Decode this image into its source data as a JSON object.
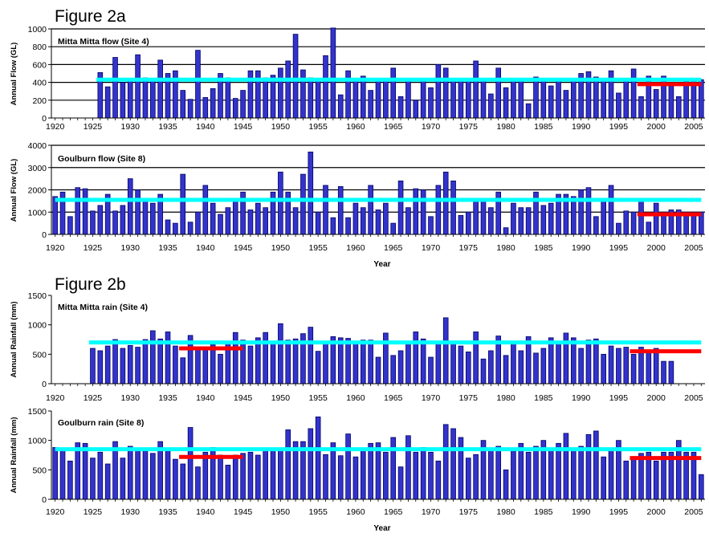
{
  "figures": [
    "Figure 2a",
    "Figure 2b"
  ],
  "chart_data": [
    {
      "type": "bar",
      "title": "Mitta Mitta flow (Site 4)",
      "ylabel": "Annual Flow (GL)",
      "xlabel": "",
      "ylim": [
        0,
        1000
      ],
      "yticks": [
        0,
        200,
        400,
        600,
        800,
        1000
      ],
      "xlim": [
        1920,
        2006
      ],
      "xticks": [
        1920,
        1925,
        1930,
        1935,
        1940,
        1945,
        1950,
        1955,
        1960,
        1965,
        1970,
        1975,
        1980,
        1985,
        1990,
        1995,
        2000,
        2005
      ],
      "grid": true,
      "bar_color": "#3333cc",
      "start_year": 1926,
      "values": [
        510,
        350,
        680,
        400,
        420,
        710,
        450,
        420,
        650,
        500,
        530,
        310,
        210,
        760,
        230,
        330,
        500,
        450,
        220,
        310,
        530,
        530,
        450,
        480,
        560,
        640,
        940,
        540,
        450,
        420,
        700,
        1010,
        260,
        530,
        420,
        470,
        310,
        430,
        440,
        560,
        240,
        420,
        200,
        430,
        340,
        600,
        560,
        430,
        420,
        420,
        640,
        420,
        270,
        560,
        340,
        430,
        420,
        160,
        460,
        420,
        360,
        430,
        310,
        430,
        500,
        520,
        460,
        420,
        530,
        280,
        420,
        550,
        240,
        470,
        320,
        470,
        360,
        240,
        410,
        430,
        430
      ],
      "mean_line": {
        "color": "#00ffff",
        "from": 1925.5,
        "to": 2006,
        "value": 430
      },
      "recent_line": {
        "color": "#ff0000",
        "from": 1997.5,
        "to": 2006,
        "value": 380
      }
    },
    {
      "type": "bar",
      "title": "Goulburn flow (Site 8)",
      "ylabel": "Annual Flow (GL)",
      "xlabel": "Year",
      "ylim": [
        0,
        4000
      ],
      "yticks": [
        0,
        1000,
        2000,
        3000,
        4000
      ],
      "xlim": [
        1920,
        2006
      ],
      "xticks": [
        1920,
        1925,
        1930,
        1935,
        1940,
        1945,
        1950,
        1955,
        1960,
        1965,
        1970,
        1975,
        1980,
        1985,
        1990,
        1995,
        2000,
        2005
      ],
      "grid": true,
      "bar_color": "#3333cc",
      "start_year": 1920,
      "values": [
        1700,
        1900,
        800,
        2100,
        2050,
        1050,
        1300,
        1800,
        1050,
        1300,
        2500,
        2000,
        1500,
        1400,
        1800,
        650,
        500,
        2700,
        550,
        1000,
        2200,
        1400,
        900,
        1200,
        1600,
        1900,
        1100,
        1400,
        1200,
        1900,
        2800,
        1900,
        1200,
        2700,
        3700,
        1000,
        2200,
        750,
        2150,
        750,
        1400,
        1200,
        2200,
        1100,
        1400,
        500,
        2400,
        1200,
        2050,
        2000,
        800,
        2200,
        2800,
        2400,
        850,
        1000,
        1500,
        1500,
        1200,
        1900,
        300,
        1400,
        1200,
        1200,
        1900,
        1300,
        1400,
        1800,
        1800,
        1700,
        2000,
        2100,
        800,
        1600,
        2200,
        500,
        1050,
        1000,
        1500,
        550,
        1400,
        1000,
        1100,
        1100,
        1000,
        1000,
        1000
      ],
      "mean_line": {
        "color": "#00ffff",
        "from": 1920,
        "to": 2006,
        "value": 1550
      },
      "recent_line": {
        "color": "#ff0000",
        "from": 1997.5,
        "to": 2006,
        "value": 900
      }
    },
    {
      "type": "bar",
      "title": "Mitta Mitta rain (Site 4)",
      "ylabel": "Annual Rainfall (mm)",
      "xlabel": "",
      "ylim": [
        0,
        1500
      ],
      "yticks": [
        0,
        500,
        1000,
        1500
      ],
      "xlim": [
        1920,
        2006
      ],
      "xticks": [
        1920,
        1925,
        1930,
        1935,
        1940,
        1945,
        1950,
        1955,
        1960,
        1965,
        1970,
        1975,
        1980,
        1985,
        1990,
        1995,
        2000,
        2005
      ],
      "grid": false,
      "bar_color": "#3333cc",
      "start_year": 1925,
      "values": [
        600,
        560,
        640,
        750,
        600,
        650,
        620,
        750,
        900,
        760,
        880,
        640,
        440,
        820,
        580,
        620,
        660,
        500,
        700,
        870,
        740,
        640,
        780,
        870,
        700,
        1020,
        740,
        760,
        850,
        960,
        550,
        700,
        800,
        780,
        770,
        720,
        740,
        740,
        450,
        860,
        480,
        560,
        700,
        880,
        760,
        450,
        720,
        1120,
        720,
        640,
        540,
        880,
        420,
        560,
        810,
        480,
        720,
        560,
        800,
        520,
        600,
        780,
        700,
        860,
        780,
        600,
        740,
        760,
        500,
        640,
        600,
        620,
        500,
        620,
        540,
        600,
        380,
        380
      ],
      "mean_line": {
        "color": "#00ffff",
        "from": 1924.5,
        "to": 2006,
        "value": 700
      },
      "recent_lines": [
        {
          "color": "#ff0000",
          "from": 1936.5,
          "to": 1945,
          "value": 600
        },
        {
          "color": "#ff0000",
          "from": 1996.5,
          "to": 2006,
          "value": 550
        }
      ]
    },
    {
      "type": "bar",
      "title": "Goulburn rain (Site 8)",
      "ylabel": "Annual Rainfall (mm)",
      "xlabel": "Year",
      "ylim": [
        0,
        1500
      ],
      "yticks": [
        0,
        500,
        1000,
        1500
      ],
      "xlim": [
        1920,
        2006
      ],
      "xticks": [
        1920,
        1925,
        1930,
        1935,
        1940,
        1945,
        1950,
        1955,
        1960,
        1965,
        1970,
        1975,
        1980,
        1985,
        1990,
        1995,
        2000,
        2005
      ],
      "grid": false,
      "bar_color": "#3333cc",
      "start_year": 1920,
      "values": [
        880,
        850,
        650,
        960,
        950,
        700,
        800,
        600,
        980,
        700,
        900,
        850,
        820,
        780,
        980,
        820,
        680,
        600,
        1220,
        550,
        800,
        880,
        750,
        580,
        750,
        780,
        800,
        750,
        850,
        830,
        860,
        1180,
        980,
        980,
        1200,
        1400,
        760,
        960,
        740,
        1110,
        720,
        830,
        950,
        960,
        800,
        1050,
        550,
        1080,
        800,
        880,
        800,
        650,
        1270,
        1200,
        1050,
        700,
        760,
        1000,
        850,
        900,
        500,
        820,
        950,
        800,
        900,
        1000,
        860,
        950,
        1120,
        860,
        900,
        1100,
        1160,
        720,
        860,
        1000,
        650,
        720,
        780,
        800,
        650,
        800,
        800,
        1000,
        800,
        800,
        420
      ],
      "mean_line": {
        "color": "#00ffff",
        "from": 1920,
        "to": 2006,
        "value": 850
      },
      "recent_lines": [
        {
          "color": "#ff0000",
          "from": 1936.5,
          "to": 1945,
          "value": 720
        },
        {
          "color": "#ff0000",
          "from": 1996.5,
          "to": 2006,
          "value": 700
        }
      ]
    }
  ]
}
